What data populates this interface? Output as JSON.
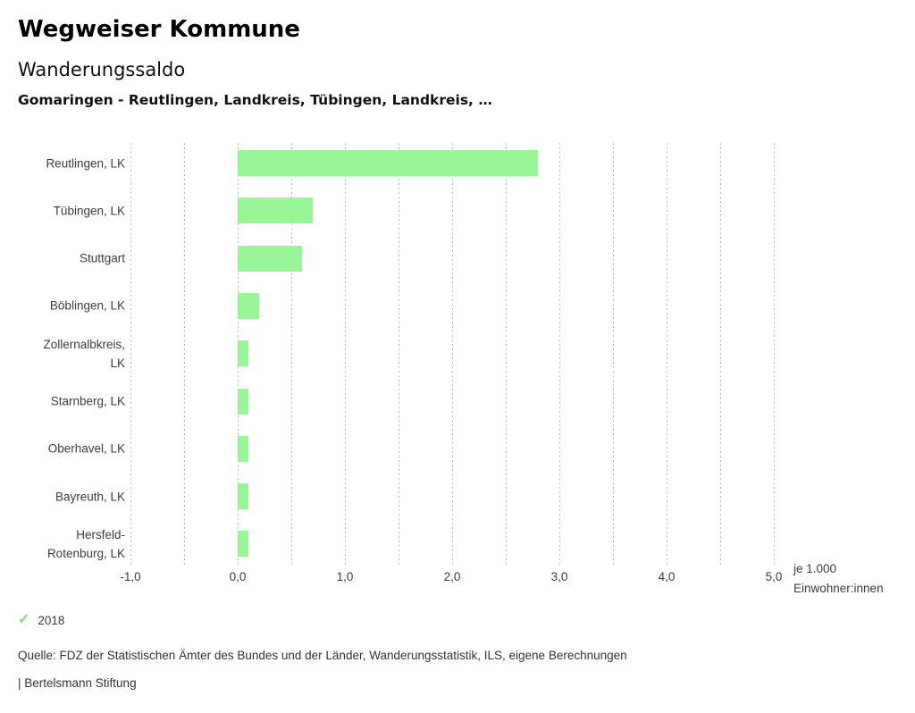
{
  "header": {
    "title": "Wegweiser Kommune",
    "subtitle": "Wanderungssaldo",
    "comparison": "Gomaringen - Reutlingen, Landkreis, Tübingen, Landkreis, …"
  },
  "chart_data": {
    "type": "bar",
    "orientation": "horizontal",
    "title": "Wanderungssaldo",
    "categories": [
      "Reutlingen, LK",
      "Tübingen, LK",
      "Stuttgart",
      "Böblingen, LK",
      "Zollernalbkreis,\nLK",
      "Starnberg, LK",
      "Oberhavel, LK",
      "Bayreuth, LK",
      "Hersfeld-\nRotenburg, LK"
    ],
    "series": [
      {
        "name": "2018",
        "values": [
          2.8,
          0.7,
          0.6,
          0.2,
          0.1,
          0.1,
          0.1,
          0.1,
          0.1
        ]
      }
    ],
    "xlabel": "je 1.000 Einwohner:innen",
    "ylabel": "",
    "xlim": [
      -1.0,
      5.0
    ],
    "grid_step": 0.5,
    "grid_style": "dotted-vertical",
    "legend_position": "bottom-left",
    "x_ticks": [
      {
        "value": -1,
        "label": "-1,0"
      },
      {
        "value": 0,
        "label": "0,0"
      },
      {
        "value": 1,
        "label": "1,0"
      },
      {
        "value": 2,
        "label": "2,0"
      },
      {
        "value": 3,
        "label": "3,0"
      },
      {
        "value": 4,
        "label": "4,0"
      },
      {
        "value": 5,
        "label": "5,0"
      }
    ],
    "axis_note_lines": [
      "je 1.000",
      "Einwohner:innen"
    ],
    "bar_color": "#98f598",
    "grid_color": "#bdbdbd"
  },
  "legend": {
    "check_icon": "✓",
    "check_color": "#7edc7e",
    "year": "2018"
  },
  "footer": {
    "source": "Quelle: FDZ der Statistischen Ämter des Bundes und der Länder, Wanderungsstatistik, ILS, eigene Berechnungen",
    "branding": "| Bertelsmann Stiftung"
  }
}
